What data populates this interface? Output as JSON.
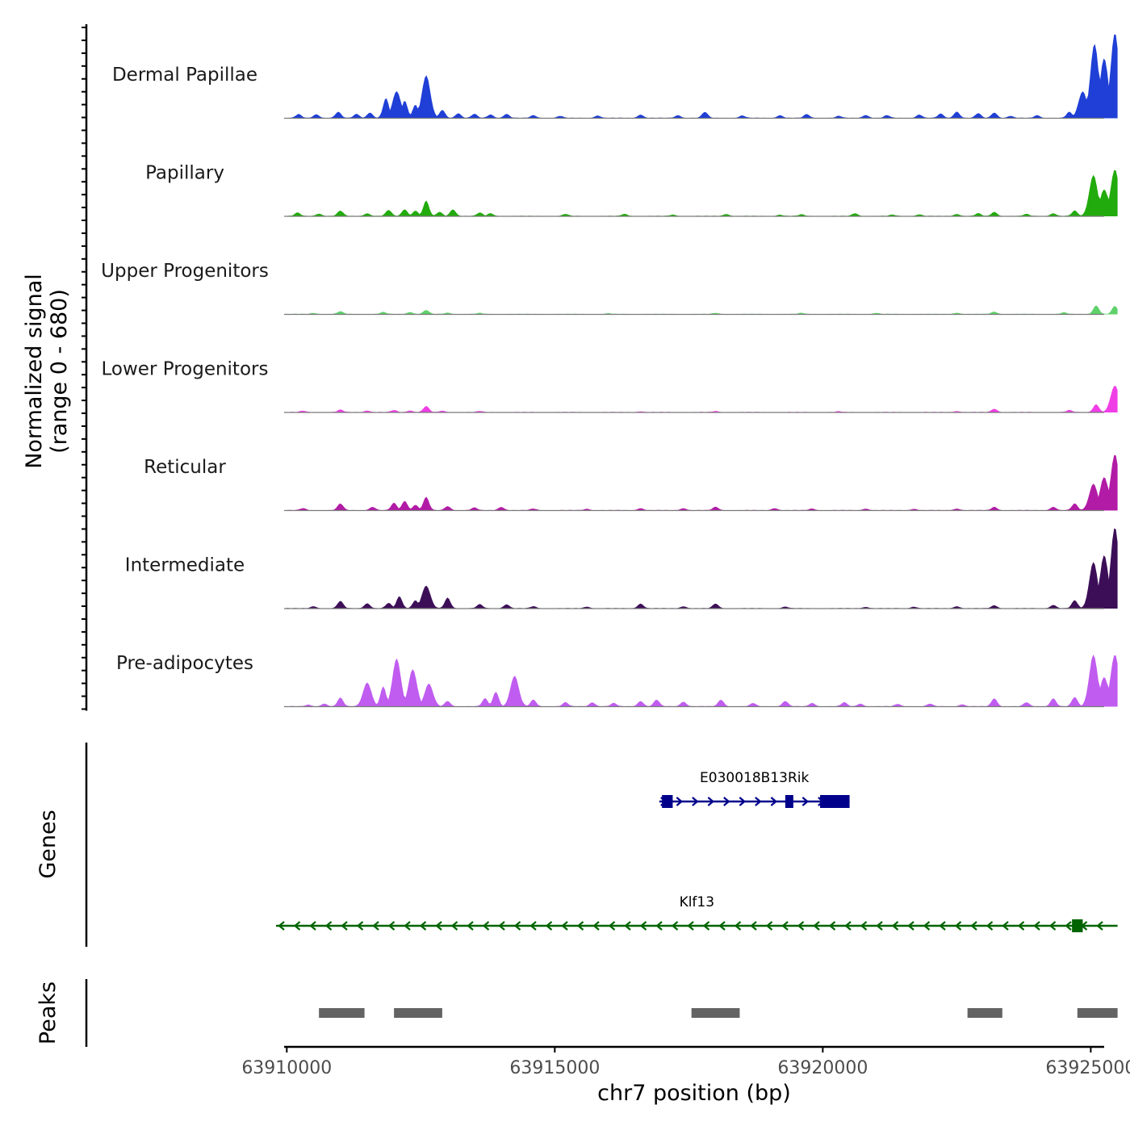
{
  "chart_data": {
    "type": "area",
    "title": "",
    "xlabel": "chr7 position (bp)",
    "ylabel_line1": "Normalized signal",
    "ylabel_line2": "(range 0 - 680)",
    "ylim": [
      0,
      680
    ],
    "xlim": [
      63909950,
      63925250
    ],
    "x_ticks": [
      63910000,
      63915000,
      63920000,
      63925000
    ],
    "x_tick_labels": [
      "63910000",
      "63915000",
      "63920000",
      "63925000"
    ],
    "track_start": 63909950,
    "track_end": 63925500,
    "tracks": [
      {
        "name": "Dermal Papillae",
        "color": "#1f3fd6",
        "peaks": [
          [
            63910220,
            28
          ],
          [
            63910550,
            28
          ],
          [
            63910960,
            45
          ],
          [
            63911300,
            30
          ],
          [
            63911550,
            40
          ],
          [
            63911850,
            150
          ],
          [
            63912050,
            200
          ],
          [
            63912200,
            130
          ],
          [
            63912400,
            100
          ],
          [
            63912600,
            320
          ],
          [
            63912900,
            60
          ],
          [
            63913200,
            35
          ],
          [
            63913500,
            30
          ],
          [
            63913800,
            25
          ],
          [
            63914100,
            30
          ],
          [
            63914600,
            20
          ],
          [
            63915100,
            15
          ],
          [
            63915800,
            18
          ],
          [
            63916600,
            25
          ],
          [
            63917300,
            20
          ],
          [
            63917800,
            45
          ],
          [
            63918500,
            18
          ],
          [
            63919200,
            20
          ],
          [
            63919700,
            28
          ],
          [
            63920300,
            15
          ],
          [
            63920800,
            22
          ],
          [
            63921200,
            20
          ],
          [
            63921800,
            25
          ],
          [
            63922200,
            32
          ],
          [
            63922500,
            48
          ],
          [
            63922900,
            35
          ],
          [
            63923200,
            40
          ],
          [
            63923500,
            15
          ],
          [
            63924000,
            20
          ],
          [
            63924600,
            45
          ],
          [
            63924850,
            200
          ],
          [
            63925070,
            560
          ],
          [
            63925250,
            450
          ],
          [
            63925450,
            640
          ]
        ]
      },
      {
        "name": "Papillary",
        "color": "#22ab0c",
        "peaks": [
          [
            63910200,
            25
          ],
          [
            63910600,
            18
          ],
          [
            63911000,
            40
          ],
          [
            63911500,
            20
          ],
          [
            63911900,
            45
          ],
          [
            63912200,
            50
          ],
          [
            63912400,
            40
          ],
          [
            63912600,
            115
          ],
          [
            63912850,
            30
          ],
          [
            63913100,
            50
          ],
          [
            63913600,
            25
          ],
          [
            63913800,
            20
          ],
          [
            63915200,
            15
          ],
          [
            63916300,
            15
          ],
          [
            63917200,
            10
          ],
          [
            63918200,
            15
          ],
          [
            63919200,
            10
          ],
          [
            63919600,
            12
          ],
          [
            63920600,
            20
          ],
          [
            63921300,
            10
          ],
          [
            63921800,
            12
          ],
          [
            63922500,
            15
          ],
          [
            63922900,
            20
          ],
          [
            63923200,
            30
          ],
          [
            63923800,
            15
          ],
          [
            63924300,
            20
          ],
          [
            63924700,
            40
          ],
          [
            63925050,
            310
          ],
          [
            63925250,
            200
          ],
          [
            63925450,
            350
          ]
        ]
      },
      {
        "name": "Upper Progenitors",
        "color": "#5fd16a",
        "peaks": [
          [
            63910500,
            8
          ],
          [
            63911000,
            20
          ],
          [
            63911800,
            15
          ],
          [
            63912300,
            15
          ],
          [
            63912600,
            30
          ],
          [
            63913000,
            10
          ],
          [
            63913600,
            8
          ],
          [
            63916000,
            5
          ],
          [
            63918000,
            8
          ],
          [
            63919600,
            8
          ],
          [
            63921000,
            8
          ],
          [
            63922500,
            10
          ],
          [
            63923200,
            18
          ],
          [
            63924500,
            12
          ],
          [
            63925100,
            65
          ],
          [
            63925450,
            60
          ]
        ]
      },
      {
        "name": "Lower Progenitors",
        "color": "#f03ee6",
        "peaks": [
          [
            63910300,
            10
          ],
          [
            63911000,
            18
          ],
          [
            63911500,
            12
          ],
          [
            63912000,
            15
          ],
          [
            63912300,
            12
          ],
          [
            63912600,
            45
          ],
          [
            63912900,
            10
          ],
          [
            63913600,
            8
          ],
          [
            63916600,
            6
          ],
          [
            63918000,
            8
          ],
          [
            63920300,
            6
          ],
          [
            63922500,
            8
          ],
          [
            63923200,
            25
          ],
          [
            63924600,
            15
          ],
          [
            63925100,
            60
          ],
          [
            63925450,
            200
          ]
        ]
      },
      {
        "name": "Reticular",
        "color": "#b21ba6",
        "peaks": [
          [
            63910300,
            15
          ],
          [
            63911000,
            50
          ],
          [
            63911600,
            25
          ],
          [
            63912000,
            55
          ],
          [
            63912200,
            70
          ],
          [
            63912400,
            40
          ],
          [
            63912600,
            100
          ],
          [
            63913000,
            30
          ],
          [
            63913500,
            20
          ],
          [
            63914000,
            25
          ],
          [
            63914600,
            12
          ],
          [
            63915600,
            10
          ],
          [
            63916600,
            15
          ],
          [
            63917400,
            15
          ],
          [
            63918000,
            25
          ],
          [
            63919100,
            15
          ],
          [
            63919800,
            12
          ],
          [
            63920800,
            12
          ],
          [
            63921700,
            10
          ],
          [
            63922500,
            12
          ],
          [
            63923200,
            25
          ],
          [
            63924300,
            25
          ],
          [
            63924700,
            50
          ],
          [
            63925050,
            200
          ],
          [
            63925250,
            250
          ],
          [
            63925450,
            420
          ]
        ]
      },
      {
        "name": "Intermediate",
        "color": "#3d0e58",
        "peaks": [
          [
            63910500,
            15
          ],
          [
            63911000,
            55
          ],
          [
            63911500,
            38
          ],
          [
            63911900,
            40
          ],
          [
            63912100,
            90
          ],
          [
            63912400,
            60
          ],
          [
            63912600,
            170
          ],
          [
            63913000,
            80
          ],
          [
            63913600,
            30
          ],
          [
            63914100,
            30
          ],
          [
            63914600,
            15
          ],
          [
            63915600,
            12
          ],
          [
            63916600,
            35
          ],
          [
            63917400,
            15
          ],
          [
            63918000,
            35
          ],
          [
            63919300,
            12
          ],
          [
            63920800,
            10
          ],
          [
            63921700,
            12
          ],
          [
            63922500,
            15
          ],
          [
            63923200,
            22
          ],
          [
            63924300,
            25
          ],
          [
            63924700,
            60
          ],
          [
            63925050,
            350
          ],
          [
            63925250,
            400
          ],
          [
            63925450,
            610
          ]
        ]
      },
      {
        "name": "Pre-adipocytes",
        "color": "#c05cf0",
        "peaks": [
          [
            63910400,
            12
          ],
          [
            63910700,
            20
          ],
          [
            63911000,
            65
          ],
          [
            63911500,
            180
          ],
          [
            63911800,
            150
          ],
          [
            63912050,
            360
          ],
          [
            63912350,
            280
          ],
          [
            63912650,
            170
          ],
          [
            63913000,
            40
          ],
          [
            63913700,
            60
          ],
          [
            63913900,
            110
          ],
          [
            63914250,
            230
          ],
          [
            63914600,
            50
          ],
          [
            63915200,
            30
          ],
          [
            63915700,
            30
          ],
          [
            63916100,
            25
          ],
          [
            63916600,
            40
          ],
          [
            63916900,
            50
          ],
          [
            63917400,
            35
          ],
          [
            63918100,
            50
          ],
          [
            63918700,
            25
          ],
          [
            63919300,
            40
          ],
          [
            63919800,
            25
          ],
          [
            63920400,
            30
          ],
          [
            63920700,
            20
          ],
          [
            63921400,
            18
          ],
          [
            63922000,
            20
          ],
          [
            63922600,
            15
          ],
          [
            63923200,
            60
          ],
          [
            63923800,
            30
          ],
          [
            63924300,
            60
          ],
          [
            63924700,
            70
          ],
          [
            63925050,
            390
          ],
          [
            63925250,
            220
          ],
          [
            63925450,
            390
          ]
        ]
      }
    ],
    "genes": [
      {
        "name": "E030018B13Rik",
        "strand": "+",
        "color": "#00008b",
        "start": 63916950,
        "end": 63920500,
        "exons": [
          [
            63917000,
            63917200
          ],
          [
            63919300,
            63919450
          ],
          [
            63919950,
            63920500
          ]
        ]
      },
      {
        "name": "Klf13",
        "strand": "-",
        "color": "#006400",
        "start": 63909800,
        "end": 63925500,
        "exons": [
          [
            63924650,
            63924850
          ]
        ]
      }
    ],
    "peak_regions": [
      [
        63910600,
        63911450
      ],
      [
        63912000,
        63912900
      ],
      [
        63917550,
        63918450
      ],
      [
        63922700,
        63923350
      ],
      [
        63924750,
        63925500
      ]
    ],
    "panel_labels": {
      "genes": "Genes",
      "peaks": "Peaks"
    },
    "peak_bar_color": "#636363"
  }
}
